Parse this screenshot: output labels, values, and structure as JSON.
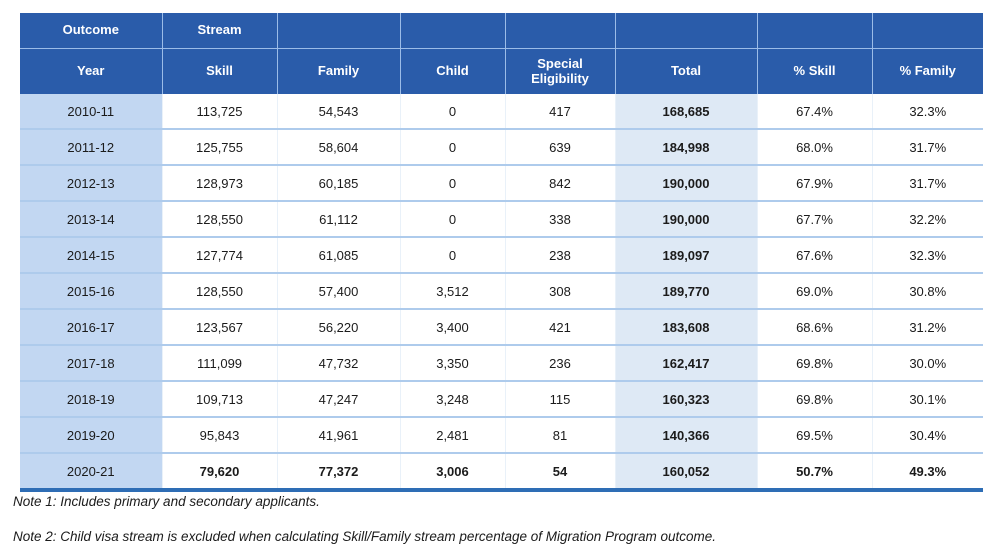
{
  "chart_data": {
    "type": "table",
    "group_header": {
      "outcome": "Outcome",
      "stream": "Stream"
    },
    "columns": [
      "Year",
      "Skill",
      "Family",
      "Child",
      "Special Eligibility",
      "Total",
      "% Skill",
      "% Family"
    ],
    "rows": [
      [
        "2010-11",
        "113,725",
        "54,543",
        "0",
        "417",
        "168,685",
        "67.4%",
        "32.3%"
      ],
      [
        "2011-12",
        "125,755",
        "58,604",
        "0",
        "639",
        "184,998",
        "68.0%",
        "31.7%"
      ],
      [
        "2012-13",
        "128,973",
        "60,185",
        "0",
        "842",
        "190,000",
        "67.9%",
        "31.7%"
      ],
      [
        "2013-14",
        "128,550",
        "61,112",
        "0",
        "338",
        "190,000",
        "67.7%",
        "32.2%"
      ],
      [
        "2014-15",
        "127,774",
        "61,085",
        "0",
        "238",
        "189,097",
        "67.6%",
        "32.3%"
      ],
      [
        "2015-16",
        "128,550",
        "57,400",
        "3,512",
        "308",
        "189,770",
        "69.0%",
        "30.8%"
      ],
      [
        "2016-17",
        "123,567",
        "56,220",
        "3,400",
        "421",
        "183,608",
        "68.6%",
        "31.2%"
      ],
      [
        "2017-18",
        "111,099",
        "47,732",
        "3,350",
        "236",
        "162,417",
        "69.8%",
        "30.0%"
      ],
      [
        "2018-19",
        "109,713",
        "47,247",
        "3,248",
        "115",
        "160,323",
        "69.8%",
        "30.1%"
      ],
      [
        "2019-20",
        "95,843",
        "41,961",
        "2,481",
        "81",
        "140,366",
        "69.5%",
        "30.4%"
      ],
      [
        "2020-21",
        "79,620",
        "77,372",
        "3,006",
        "54",
        "160,052",
        "50.7%",
        "49.3%"
      ]
    ],
    "bold_columns": [
      "Total"
    ],
    "bold_rows": [
      "2020-21"
    ],
    "layout_hints": {
      "grid": "on",
      "first_column_shaded": true,
      "total_column_shaded": true
    }
  },
  "notes": [
    "Note 1: Includes primary and secondary applicants.",
    "Note 2: Child visa stream is excluded when calculating Skill/Family stream percentage of Migration Program outcome."
  ],
  "colors": {
    "header_bg": "#2A5CAA",
    "header_text": "#FFFFFF",
    "year_column_bg": "#C2D7F2",
    "total_column_bg": "#DEE9F5",
    "row_separator": "#AECBEC",
    "table_bottom_border": "#2E6DB5",
    "body_text": "#1B1B1B"
  }
}
